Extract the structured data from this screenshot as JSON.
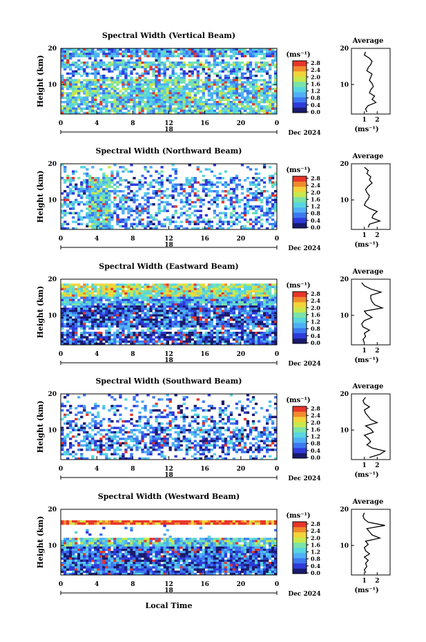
{
  "chart_data": [
    {
      "type": "heatmap",
      "title": "Spectral Width (Vertical Beam)",
      "ylabel": "Height (km)",
      "xticks": [
        "0",
        "4",
        "8",
        "12",
        "16",
        "20",
        "0"
      ],
      "yticks": [
        "20",
        "10"
      ],
      "date_label": "Dec 2024",
      "day_label": "18",
      "colorbar_unit": "(ms⁻¹)",
      "colorbar_ticks": [
        "2.8",
        "2.4",
        "2.0",
        "1.6",
        "1.2",
        "0.8",
        "0.4",
        "0.0"
      ],
      "coverage": 0.85,
      "pattern": "vertical",
      "avg_title": "Average",
      "avg_xticks": [
        "1",
        "2"
      ],
      "avg_yticks": [
        "20",
        "10"
      ],
      "avg_xlabel": "(ms⁻¹)",
      "avg_profile": [
        1.2,
        1.1,
        1.3,
        1.9,
        1.6,
        1.8,
        1.4,
        1.5,
        1.7,
        1.6,
        1.4,
        1.5,
        1.6,
        1.2,
        1.3,
        1.5,
        1.6,
        1.4,
        1.0,
        1.1
      ]
    },
    {
      "type": "heatmap",
      "title": "Spectral Width (Northward Beam)",
      "ylabel": "Height (km)",
      "xticks": [
        "0",
        "4",
        "8",
        "12",
        "16",
        "20",
        "0"
      ],
      "yticks": [
        "20",
        "10"
      ],
      "date_label": "Dec 2024",
      "day_label": "18",
      "colorbar_unit": "(ms⁻¹)",
      "colorbar_ticks": [
        "2.8",
        "2.4",
        "2.0",
        "1.6",
        "1.2",
        "0.8",
        "0.4",
        "0.0"
      ],
      "coverage": 0.45,
      "pattern": "north",
      "avg_title": "Average",
      "avg_xticks": [
        "1",
        "2"
      ],
      "avg_yticks": [
        "20",
        "10"
      ],
      "avg_xlabel": "(ms⁻¹)",
      "avg_profile": [
        1.3,
        1.4,
        2.2,
        1.6,
        1.7,
        2.0,
        1.4,
        1.0,
        1.1,
        1.3,
        1.4,
        1.2,
        1.1,
        1.3,
        1.6,
        1.4,
        1.5,
        1.2,
        1.3,
        1.0
      ]
    },
    {
      "type": "heatmap",
      "title": "Spectral Width (Eastward Beam)",
      "ylabel": "Height (km)",
      "xticks": [
        "0",
        "4",
        "8",
        "12",
        "16",
        "20",
        "0"
      ],
      "yticks": [
        "20",
        "10"
      ],
      "date_label": "Dec 2024",
      "day_label": "18",
      "colorbar_unit": "(ms⁻¹)",
      "colorbar_ticks": [
        "2.8",
        "2.4",
        "2.0",
        "1.6",
        "1.2",
        "0.8",
        "0.4",
        "0.0"
      ],
      "coverage": 0.9,
      "pattern": "east",
      "avg_title": "Average",
      "avg_xticks": [
        "1",
        "2"
      ],
      "avg_yticks": [
        "20",
        "10"
      ],
      "avg_xlabel": "(ms⁻¹)",
      "avg_profile": [
        1.0,
        0.9,
        1.1,
        1.0,
        1.4,
        0.9,
        0.8,
        1.0,
        1.6,
        1.2,
        1.0,
        2.4,
        1.8,
        1.6,
        1.5,
        1.5,
        2.3,
        1.5,
        1.0,
        0.8
      ]
    },
    {
      "type": "heatmap",
      "title": "Spectral Width (Southward Beam)",
      "ylabel": "Height (km)",
      "xticks": [
        "0",
        "4",
        "8",
        "12",
        "16",
        "20",
        "0"
      ],
      "yticks": [
        "20",
        "10"
      ],
      "date_label": "Dec 2024",
      "day_label": "18",
      "colorbar_unit": "(ms⁻¹)",
      "colorbar_ticks": [
        "2.8",
        "2.4",
        "2.0",
        "1.6",
        "1.2",
        "0.8",
        "0.4",
        "0.0"
      ],
      "coverage": 0.4,
      "pattern": "south",
      "avg_title": "Average",
      "avg_xticks": [
        "1",
        "2"
      ],
      "avg_yticks": [
        "20",
        "10"
      ],
      "avg_xlabel": "(ms⁻¹)",
      "avg_profile": [
        1.4,
        2.2,
        2.6,
        1.6,
        1.2,
        1.5,
        1.3,
        1.0,
        1.7,
        1.5,
        1.1,
        2.0,
        1.5,
        1.3,
        1.1,
        1.0,
        1.4,
        1.0,
        0.9,
        1.1
      ]
    },
    {
      "type": "heatmap",
      "title": "Spectral Width (Westward Beam)",
      "ylabel": "Height (km)",
      "xticks": [
        "0",
        "4",
        "8",
        "12",
        "16",
        "20",
        "0"
      ],
      "yticks": [
        "20",
        "10"
      ],
      "date_label": "Dec 2024",
      "day_label": "18",
      "colorbar_unit": "(ms⁻¹)",
      "colorbar_ticks": [
        "2.8",
        "2.4",
        "2.0",
        "1.6",
        "1.2",
        "0.8",
        "0.4",
        "0.0"
      ],
      "coverage": 0.88,
      "pattern": "west",
      "xlabel": "Local Time",
      "avg_title": "Average",
      "avg_xticks": [
        "1",
        "2"
      ],
      "avg_yticks": [
        "20",
        "10"
      ],
      "avg_xlabel": "(ms⁻¹)",
      "avg_profile": [
        1.1,
        1.0,
        1.2,
        1.1,
        1.3,
        1.0,
        1.4,
        1.1,
        1.0,
        1.3,
        1.1,
        2.2,
        1.6,
        1.4,
        1.2,
        2.6,
        1.3,
        1.0,
        0.9,
        1.0
      ]
    }
  ],
  "colors": {
    "scale": [
      "#1a1a6e",
      "#2e3bd9",
      "#3c78f0",
      "#4fb0f5",
      "#57d6e0",
      "#79e3a8",
      "#c8e84d",
      "#f2d43a",
      "#f08a2e",
      "#e8352a"
    ]
  }
}
